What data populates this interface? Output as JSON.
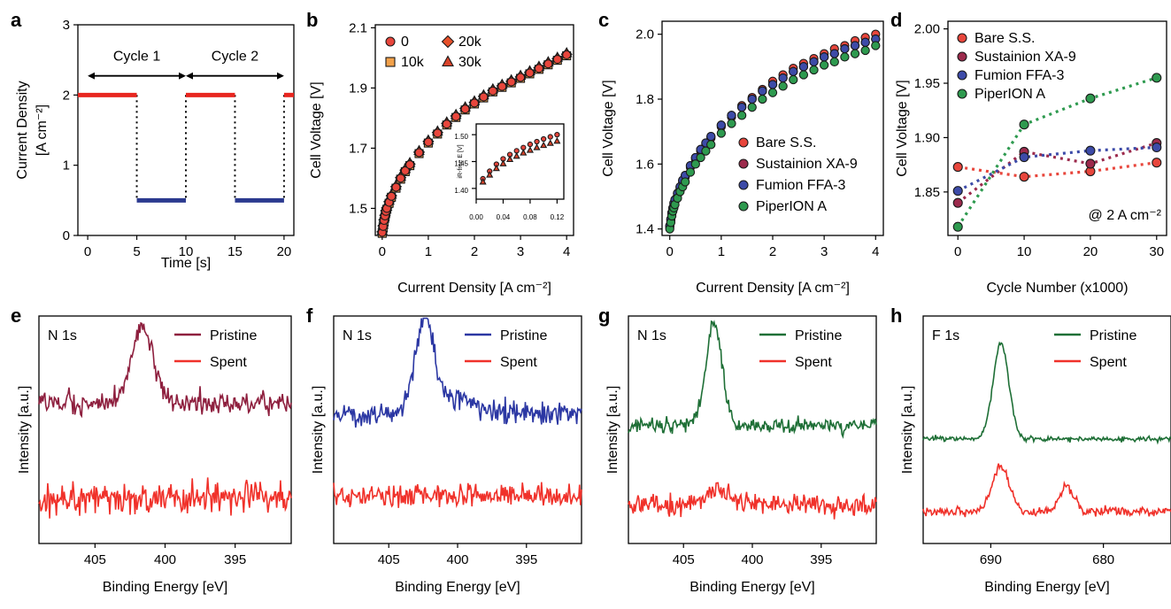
{
  "chart_data": [
    {
      "panel": "a",
      "type": "line",
      "xlabel": "Time [s]",
      "ylabel": [
        "Current Density",
        "[A cm⁻²]"
      ],
      "xlim": [
        -1,
        21
      ],
      "ylim": [
        0,
        3
      ],
      "xticks": [
        0,
        5,
        10,
        15,
        20
      ],
      "yticks": [
        0,
        1,
        2,
        3
      ],
      "annotations": [
        {
          "text": "Cycle 1",
          "x": [
            0,
            10
          ],
          "y": 2.55
        },
        {
          "text": "Cycle 2",
          "x": [
            10,
            20
          ],
          "y": 2.55
        }
      ],
      "segments": [
        {
          "color": "#e8261f",
          "x": [
            -1,
            5
          ],
          "y": 2
        },
        {
          "color": "#2b3a8f",
          "x": [
            5,
            10
          ],
          "y": 0.5
        },
        {
          "color": "#e8261f",
          "x": [
            10,
            15
          ],
          "y": 2
        },
        {
          "color": "#2b3a8f",
          "x": [
            15,
            20
          ],
          "y": 0.5
        },
        {
          "color": "#e8261f",
          "x": [
            20,
            21
          ],
          "y": 2
        }
      ],
      "transitions_x": [
        5,
        10,
        15,
        20
      ]
    },
    {
      "panel": "b",
      "type": "scatter",
      "xlabel": "Current Density [A cm⁻²]",
      "ylabel": "Cell Voltage [V]",
      "xlim": [
        -0.15,
        4.15
      ],
      "ylim": [
        1.41,
        2.11
      ],
      "xticks": [
        0,
        1,
        2,
        3,
        4
      ],
      "yticks": [
        1.5,
        1.7,
        1.9,
        2.1
      ],
      "legend_position": "top-left",
      "series": [
        {
          "name": "0",
          "marker": "circle",
          "color": "#e8463c",
          "offset": 0.0
        },
        {
          "name": "10k",
          "marker": "square",
          "color": "#f2a14a",
          "offset": -0.003
        },
        {
          "name": "20k",
          "marker": "diamond",
          "color": "#e6502a",
          "offset": 0.002
        },
        {
          "name": "30k",
          "marker": "triangle",
          "color": "#d8432a",
          "offset": 0.006
        }
      ],
      "x": [
        0.0,
        0.02,
        0.04,
        0.06,
        0.08,
        0.1,
        0.15,
        0.2,
        0.3,
        0.4,
        0.5,
        0.6,
        0.8,
        1.0,
        1.2,
        1.4,
        1.6,
        1.8,
        2.0,
        2.2,
        2.4,
        2.6,
        2.8,
        3.0,
        3.2,
        3.4,
        3.6,
        3.8,
        4.0
      ],
      "y": [
        1.42,
        1.44,
        1.46,
        1.475,
        1.49,
        1.5,
        1.52,
        1.54,
        1.57,
        1.6,
        1.625,
        1.645,
        1.685,
        1.72,
        1.75,
        1.78,
        1.805,
        1.83,
        1.85,
        1.87,
        1.89,
        1.905,
        1.92,
        1.935,
        1.95,
        1.965,
        1.98,
        1.995,
        2.01
      ],
      "inset": {
        "ylabel": "iR-free E [V]",
        "xlim": [
          0,
          0.13
        ],
        "ylim": [
          1.38,
          1.52
        ],
        "xticks": [
          "0.00",
          "0.04",
          "0.08",
          "0.12"
        ],
        "yticks": [
          "1.40",
          "1.45",
          "1.50"
        ],
        "x": [
          0.01,
          0.02,
          0.03,
          0.04,
          0.05,
          0.06,
          0.07,
          0.08,
          0.09,
          0.1,
          0.11,
          0.12
        ],
        "series": [
          {
            "name": "0",
            "y": [
              1.418,
              1.432,
              1.445,
              1.455,
              1.463,
              1.47,
              1.476,
              1.482,
              1.487,
              1.492,
              1.496,
              1.5
            ]
          },
          {
            "name": "30k",
            "y": [
              1.412,
              1.425,
              1.437,
              1.446,
              1.454,
              1.46,
              1.466,
              1.471,
              1.476,
              1.48,
              1.484,
              1.488
            ]
          }
        ]
      }
    },
    {
      "panel": "c",
      "type": "scatter",
      "xlabel": "Current Density [A cm⁻²]",
      "ylabel": "Cell Voltage [V]",
      "xlim": [
        -0.15,
        4.15
      ],
      "ylim": [
        1.38,
        2.04
      ],
      "xticks": [
        0,
        1,
        2,
        3,
        4
      ],
      "yticks": [
        1.4,
        1.6,
        1.8,
        2.0
      ],
      "legend_position": "bottom-right",
      "x": [
        0.0,
        0.02,
        0.04,
        0.06,
        0.08,
        0.1,
        0.15,
        0.2,
        0.25,
        0.3,
        0.4,
        0.5,
        0.6,
        0.7,
        0.8,
        1.0,
        1.2,
        1.4,
        1.6,
        1.8,
        2.0,
        2.2,
        2.4,
        2.6,
        2.8,
        3.0,
        3.2,
        3.4,
        3.6,
        3.8,
        4.0
      ],
      "series": [
        {
          "name": "Bare S.S.",
          "color": "#e8463c",
          "y": [
            1.41,
            1.43,
            1.45,
            1.465,
            1.48,
            1.49,
            1.51,
            1.53,
            1.55,
            1.565,
            1.595,
            1.62,
            1.645,
            1.665,
            1.685,
            1.72,
            1.75,
            1.78,
            1.805,
            1.83,
            1.855,
            1.875,
            1.895,
            1.91,
            1.925,
            1.94,
            1.955,
            1.965,
            1.98,
            1.99,
            2.0
          ]
        },
        {
          "name": "Sustainion XA-9",
          "color": "#9c2a4c",
          "y": [
            1.405,
            1.425,
            1.445,
            1.46,
            1.475,
            1.485,
            1.505,
            1.525,
            1.545,
            1.56,
            1.59,
            1.615,
            1.64,
            1.66,
            1.68,
            1.715,
            1.745,
            1.775,
            1.8,
            1.825,
            1.845,
            1.865,
            1.885,
            1.9,
            1.915,
            1.93,
            1.94,
            1.955,
            1.965,
            1.975,
            1.985
          ]
        },
        {
          "name": "Fumion FFA-3",
          "color": "#3d4ba8",
          "y": [
            1.41,
            1.43,
            1.45,
            1.465,
            1.48,
            1.49,
            1.51,
            1.53,
            1.55,
            1.565,
            1.595,
            1.62,
            1.645,
            1.665,
            1.685,
            1.72,
            1.75,
            1.775,
            1.8,
            1.825,
            1.845,
            1.865,
            1.885,
            1.9,
            1.915,
            1.93,
            1.94,
            1.955,
            1.965,
            1.975,
            1.985
          ]
        },
        {
          "name": "PiperION A",
          "color": "#2e9a4f",
          "y": [
            1.4,
            1.42,
            1.44,
            1.455,
            1.465,
            1.475,
            1.495,
            1.515,
            1.53,
            1.545,
            1.575,
            1.6,
            1.62,
            1.64,
            1.66,
            1.695,
            1.725,
            1.75,
            1.775,
            1.8,
            1.82,
            1.84,
            1.86,
            1.875,
            1.89,
            1.905,
            1.915,
            1.93,
            1.94,
            1.95,
            1.965
          ]
        }
      ]
    },
    {
      "panel": "d",
      "type": "line",
      "xlabel": "Cycle Number (x1000)",
      "ylabel": "Cell Voltage [V]",
      "xlim": [
        -1.5,
        31.5
      ],
      "ylim": [
        1.81,
        2.007
      ],
      "xticks": [
        0,
        10,
        20,
        30
      ],
      "yticks": [
        1.85,
        1.9,
        1.95,
        2.0
      ],
      "annotation": "@ 2 A cm⁻²",
      "legend_position": "top-left",
      "x": [
        0,
        10,
        20,
        30
      ],
      "series": [
        {
          "name": "Bare S.S.",
          "color": "#e8463c",
          "y": [
            1.873,
            1.864,
            1.869,
            1.877
          ]
        },
        {
          "name": "Sustainion XA-9",
          "color": "#9c2a4c",
          "y": [
            1.84,
            1.887,
            1.876,
            1.895
          ]
        },
        {
          "name": "Fumion FFA-3",
          "color": "#3d4ba8",
          "y": [
            1.851,
            1.882,
            1.888,
            1.891
          ]
        },
        {
          "name": "PiperION A",
          "color": "#2e9a4f",
          "y": [
            1.818,
            1.912,
            1.936,
            1.955
          ]
        }
      ]
    },
    {
      "panel": "e",
      "type": "line",
      "title": "N 1s",
      "xlabel": "Binding Energy [eV]",
      "ylabel": "Intensity [a.u.]",
      "xlim": [
        409,
        391
      ],
      "xticks": [
        405,
        400,
        395
      ],
      "series": [
        {
          "name": "Pristine",
          "color": "#8e1f3e",
          "baseline": 0.62,
          "noise": 0.05,
          "peaks": [
            {
              "center": 401.6,
              "height": 0.33,
              "width": 0.75
            }
          ]
        },
        {
          "name": "Spent",
          "color": "#f0312a",
          "baseline": 0.2,
          "noise": 0.07,
          "peaks": []
        }
      ]
    },
    {
      "panel": "f",
      "type": "line",
      "title": "N 1s",
      "xlabel": "Binding Energy [eV]",
      "ylabel": "Intensity [a.u.]",
      "xlim": [
        409,
        391
      ],
      "xticks": [
        405,
        400,
        395
      ],
      "series": [
        {
          "name": "Pristine",
          "color": "#2b37a3",
          "baseline": 0.57,
          "noise": 0.05,
          "peaks": [
            {
              "center": 402.4,
              "height": 0.4,
              "width": 0.7
            },
            {
              "center": 400.2,
              "height": 0.07,
              "width": 1.3
            }
          ]
        },
        {
          "name": "Spent",
          "color": "#f0312a",
          "baseline": 0.21,
          "noise": 0.05,
          "peaks": []
        }
      ]
    },
    {
      "panel": "g",
      "type": "line",
      "title": "N 1s",
      "xlabel": "Binding Energy [eV]",
      "ylabel": "Intensity [a.u.]",
      "xlim": [
        409,
        391
      ],
      "xticks": [
        405,
        400,
        395
      ],
      "series": [
        {
          "name": "Pristine",
          "color": "#1e6f36",
          "baseline": 0.52,
          "noise": 0.035,
          "peaks": [
            {
              "center": 402.8,
              "height": 0.45,
              "width": 0.6
            }
          ]
        },
        {
          "name": "Spent",
          "color": "#f0312a",
          "baseline": 0.17,
          "noise": 0.05,
          "peaks": [
            {
              "center": 402.6,
              "height": 0.07,
              "width": 1.0
            }
          ]
        }
      ]
    },
    {
      "panel": "h",
      "type": "line",
      "title": "F 1s",
      "xlabel": "Binding Energy [eV]",
      "ylabel": "Intensity [a.u.]",
      "xlim": [
        696,
        674
      ],
      "xticks": [
        690,
        680
      ],
      "series": [
        {
          "name": "Pristine",
          "color": "#1e6f36",
          "baseline": 0.46,
          "noise": 0.012,
          "peaks": [
            {
              "center": 689.1,
              "height": 0.42,
              "width": 0.7
            }
          ]
        },
        {
          "name": "Spent",
          "color": "#f0312a",
          "baseline": 0.14,
          "noise": 0.018,
          "peaks": [
            {
              "center": 689.1,
              "height": 0.2,
              "width": 0.75
            },
            {
              "center": 683.3,
              "height": 0.11,
              "width": 0.65
            }
          ]
        }
      ]
    }
  ]
}
